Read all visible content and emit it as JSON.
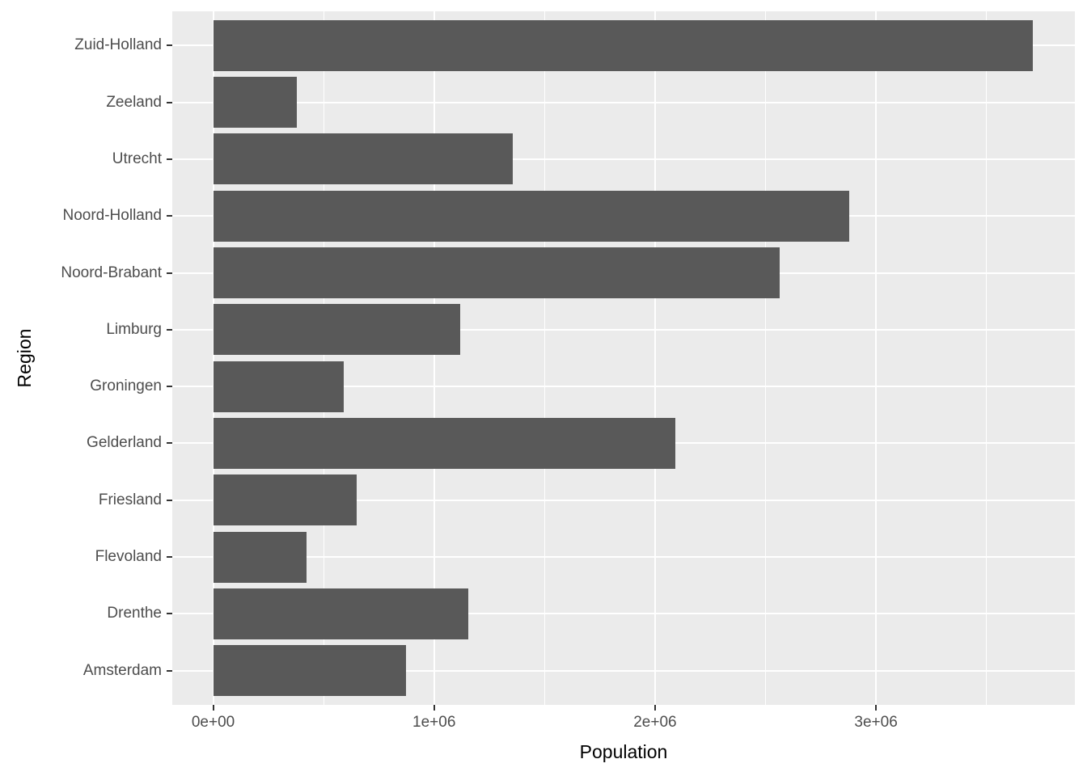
{
  "chart_data": {
    "type": "bar",
    "orientation": "horizontal",
    "title": "",
    "xlabel": "Population",
    "ylabel": "Region",
    "categories_top_to_bottom": [
      "Zuid-Holland",
      "Zeeland",
      "Utrecht",
      "Noord-Holland",
      "Noord-Brabant",
      "Limburg",
      "Groningen",
      "Gelderland",
      "Friesland",
      "Flevoland",
      "Drenthe",
      "Amsterdam"
    ],
    "values": [
      3710000,
      380000,
      1355000,
      2880000,
      2565000,
      1118000,
      590000,
      2090000,
      648000,
      424000,
      1156000,
      874000
    ],
    "x_ticks": [
      {
        "label": "0e+00",
        "value": 0
      },
      {
        "label": "1e+06",
        "value": 1000000
      },
      {
        "label": "2e+06",
        "value": 2000000
      },
      {
        "label": "3e+06",
        "value": 3000000
      }
    ],
    "x_minor_gridlines": [
      500000,
      1500000,
      2500000,
      3500000
    ],
    "xlim": [
      -185000,
      3900000
    ],
    "bar_width_fraction": 0.9,
    "grid": true,
    "legend": false,
    "style": "ggplot2-grey",
    "colors": {
      "bar_fill": "#595959",
      "panel_background": "#EBEBEB",
      "gridline": "#FFFFFF",
      "tick_label": "#4D4D4D",
      "axis_title": "#000000",
      "tick_mark": "#333333",
      "page_background": "#FFFFFF"
    }
  }
}
